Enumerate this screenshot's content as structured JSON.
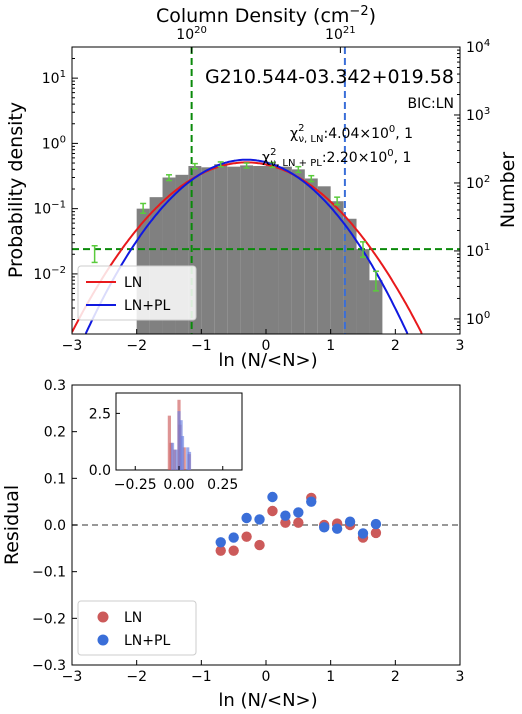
{
  "chart_data": [
    {
      "type": "bar",
      "title": "G210.544-03.342+019.58",
      "xlabel": "ln (N/<N>)",
      "ylabel": "Probability density",
      "ylabel_right": "Number",
      "top_xlabel": "Column Density (cm$^{-2}$)",
      "top_ticks": [
        {
          "base": "10",
          "exp": "20",
          "at_ln": -1.15
        },
        {
          "base": "10",
          "exp": "21",
          "at_ln": 1.15
        }
      ],
      "xlim": [
        -3,
        3
      ],
      "ylim": [
        0.0012,
        30
      ],
      "yscale": "log",
      "ylim_right": [
        0.6,
        10000
      ],
      "xticks": [
        "-3",
        "-2",
        "-1",
        "0",
        "1",
        "2",
        "3"
      ],
      "yticks": [
        {
          "base": "10",
          "exp": "-2"
        },
        {
          "base": "10",
          "exp": "-1"
        },
        {
          "base": "10",
          "exp": "0"
        },
        {
          "base": "10",
          "exp": "1"
        }
      ],
      "yticks_right": [
        {
          "base": "10",
          "exp": "0"
        },
        {
          "base": "10",
          "exp": "1"
        },
        {
          "base": "10",
          "exp": "2"
        },
        {
          "base": "10",
          "exp": "3"
        },
        {
          "base": "10",
          "exp": "4"
        }
      ],
      "annotations": {
        "bic": "BIC:LN",
        "chi_ln": "4.04×10",
        "chi_ln_exp": "0",
        "chi_ln_tail": ", 1",
        "chi_lnpl": "2.20×10",
        "chi_lnpl_exp": "0",
        "chi_lnpl_tail": ", 1",
        "chi_symbol": "χ",
        "chi_sub_ln": "ν, LN",
        "chi_sub_lnpl": "ν, LN + PL"
      },
      "hist_bins": [
        {
          "x0": -2.0,
          "x1": -1.8,
          "v": 0.1
        },
        {
          "x0": -1.8,
          "x1": -1.6,
          "v": 0.15
        },
        {
          "x0": -1.6,
          "x1": -1.4,
          "v": 0.3
        },
        {
          "x0": -1.4,
          "x1": -1.2,
          "v": 0.33
        },
        {
          "x0": -1.2,
          "x1": -1.0,
          "v": 0.45
        },
        {
          "x0": -1.0,
          "x1": -0.8,
          "v": 0.43
        },
        {
          "x0": -0.8,
          "x1": -0.6,
          "v": 0.48
        },
        {
          "x0": -0.6,
          "x1": -0.4,
          "v": 0.44
        },
        {
          "x0": -0.4,
          "x1": -0.2,
          "v": 0.46
        },
        {
          "x0": -0.2,
          "x1": 0.0,
          "v": 0.45
        },
        {
          "x0": 0.0,
          "x1": 0.2,
          "v": 0.48
        },
        {
          "x0": 0.2,
          "x1": 0.4,
          "v": 0.44
        },
        {
          "x0": 0.4,
          "x1": 0.6,
          "v": 0.4
        },
        {
          "x0": 0.6,
          "x1": 0.8,
          "v": 0.29
        },
        {
          "x0": 0.8,
          "x1": 1.0,
          "v": 0.22
        },
        {
          "x0": 1.0,
          "x1": 1.2,
          "v": 0.13
        },
        {
          "x0": 1.2,
          "x1": 1.4,
          "v": 0.07
        },
        {
          "x0": 1.4,
          "x1": 1.6,
          "v": 0.024
        },
        {
          "x0": 1.6,
          "x1": 1.8,
          "v": 0.008
        }
      ],
      "error_points": [
        {
          "x": -1.9,
          "v": 0.1,
          "lo": 0.085,
          "hi": 0.12
        },
        {
          "x": -1.5,
          "v": 0.3,
          "lo": 0.27,
          "hi": 0.33
        },
        {
          "x": -1.1,
          "v": 0.45,
          "lo": 0.41,
          "hi": 0.49
        },
        {
          "x": -0.7,
          "v": 0.48,
          "lo": 0.44,
          "hi": 0.52
        },
        {
          "x": -0.3,
          "v": 0.46,
          "lo": 0.42,
          "hi": 0.5
        },
        {
          "x": 0.1,
          "v": 0.47,
          "lo": 0.43,
          "hi": 0.51
        },
        {
          "x": 0.5,
          "v": 0.4,
          "lo": 0.36,
          "hi": 0.44
        },
        {
          "x": 0.7,
          "v": 0.29,
          "lo": 0.26,
          "hi": 0.32
        },
        {
          "x": 1.1,
          "v": 0.13,
          "lo": 0.115,
          "hi": 0.15
        },
        {
          "x": 1.5,
          "v": 0.024,
          "lo": 0.018,
          "hi": 0.031
        },
        {
          "x": 1.7,
          "v": 0.008,
          "lo": 0.0055,
          "hi": 0.011
        },
        {
          "x": -2.65,
          "v": 0.02,
          "lo": 0.015,
          "hi": 0.027
        }
      ],
      "curves": {
        "ln": {
          "mu": -0.3,
          "sigma": 0.78,
          "color": "#e8191c"
        },
        "lnpl": {
          "mu": -0.3,
          "sigma": 0.71,
          "color": "#1019e0"
        }
      },
      "thresholds": {
        "vertical_green_x": -1.15,
        "vertical_blue_x": 1.22,
        "horizontal_green_y": 0.024
      },
      "legend": {
        "placement": "lower-left",
        "items": [
          "LN",
          "LN+PL"
        ]
      },
      "colors": {
        "hist": "#808080",
        "errbar": "#5acb3c",
        "threshold_green": "#0a8a0a",
        "threshold_blue": "#3a6ed8"
      }
    },
    {
      "type": "scatter",
      "xlabel": "ln (N/<N>)",
      "ylabel": "Residual",
      "xlim": [
        -3,
        3
      ],
      "ylim": [
        -0.3,
        0.3
      ],
      "xticks": [
        "-3",
        "-2",
        "-1",
        "0",
        "1",
        "2",
        "3"
      ],
      "yticks": [
        "-0.3",
        "-0.2",
        "-0.1",
        "0.0",
        "0.1",
        "0.2",
        "0.3"
      ],
      "series": [
        {
          "name": "LN",
          "color": "#cc5a5a",
          "x": [
            -0.7,
            -0.5,
            -0.3,
            -0.1,
            0.1,
            0.3,
            0.5,
            0.7,
            0.9,
            1.1,
            1.3,
            1.5,
            1.7
          ],
          "y": [
            -0.055,
            -0.055,
            -0.025,
            -0.043,
            0.03,
            0.005,
            0.005,
            0.058,
            0.0,
            0.003,
            0.0,
            -0.027,
            -0.017
          ]
        },
        {
          "name": "LN+PL",
          "color": "#3a6ed8",
          "x": [
            -0.7,
            -0.5,
            -0.3,
            -0.1,
            0.1,
            0.3,
            0.5,
            0.7,
            0.9,
            1.1,
            1.3,
            1.5,
            1.7
          ],
          "y": [
            -0.037,
            -0.027,
            0.015,
            0.012,
            0.06,
            0.02,
            0.027,
            0.05,
            -0.005,
            -0.008,
            0.007,
            -0.018,
            0.002
          ]
        }
      ],
      "legend": {
        "placement": "lower-left",
        "items": [
          "LN",
          "LN+PL"
        ]
      },
      "inset": {
        "type": "bar",
        "xticks": [
          "−0.25",
          "0.00",
          "0.25"
        ],
        "yticks": [
          "0.0",
          "2.5"
        ],
        "xlim": [
          -0.36,
          0.36
        ],
        "ylim": [
          0,
          3.4
        ],
        "bars_ln": [
          {
            "x": -0.055,
            "v": 2.4
          },
          {
            "x": -0.045,
            "v": 1.2
          },
          {
            "x": -0.025,
            "v": 0.9
          },
          {
            "x": 0.0,
            "v": 3.1
          },
          {
            "x": 0.005,
            "v": 2.0
          },
          {
            "x": 0.03,
            "v": 1.0
          },
          {
            "x": 0.058,
            "v": 0.7
          }
        ],
        "bars_lnpl": [
          {
            "x": -0.037,
            "v": 1.2
          },
          {
            "x": -0.018,
            "v": 0.9
          },
          {
            "x": 0.0,
            "v": 2.6
          },
          {
            "x": 0.012,
            "v": 2.2
          },
          {
            "x": 0.02,
            "v": 1.5
          },
          {
            "x": 0.05,
            "v": 1.0
          },
          {
            "x": 0.06,
            "v": 0.8
          }
        ]
      }
    }
  ]
}
